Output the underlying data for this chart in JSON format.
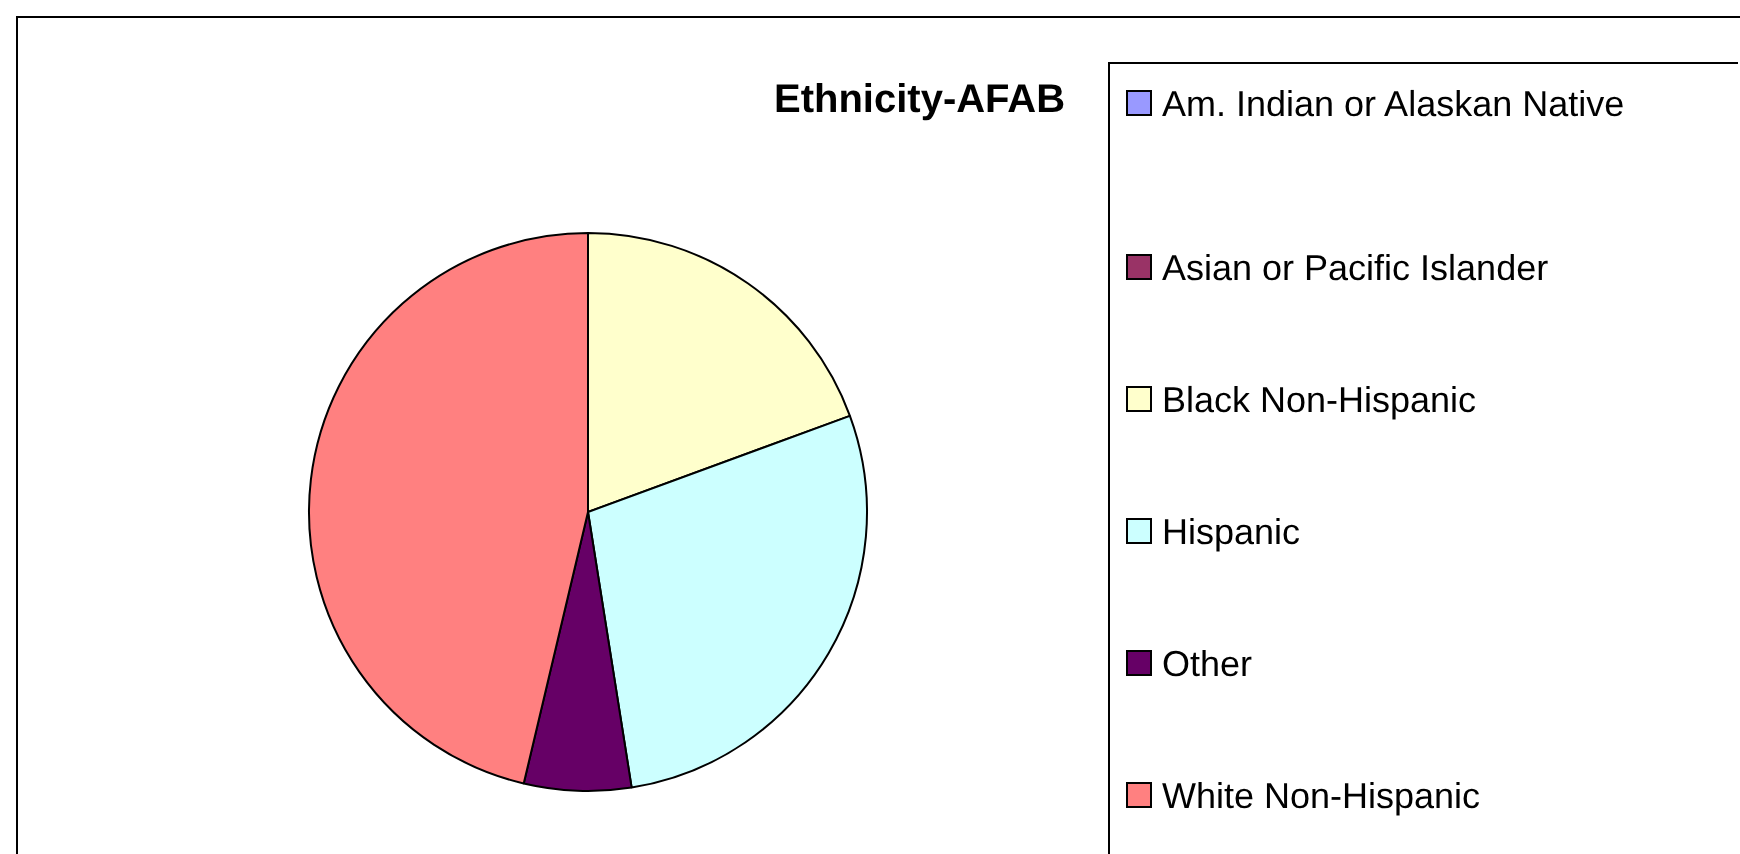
{
  "chart_data": {
    "type": "pie",
    "title": "Ethnicity-AFAB",
    "categories": [
      "Am. Indian or Alaskan Native",
      "Asian or Pacific Islander",
      "Black Non-Hispanic",
      "Hispanic",
      "Other",
      "White Non-Hispanic"
    ],
    "values": [
      0,
      0,
      19.4,
      28.1,
      6.2,
      46.3
    ],
    "colors": [
      "#9999ff",
      "#993366",
      "#ffffcc",
      "#ccffff",
      "#660066",
      "#ff8080"
    ],
    "legend": "right"
  }
}
